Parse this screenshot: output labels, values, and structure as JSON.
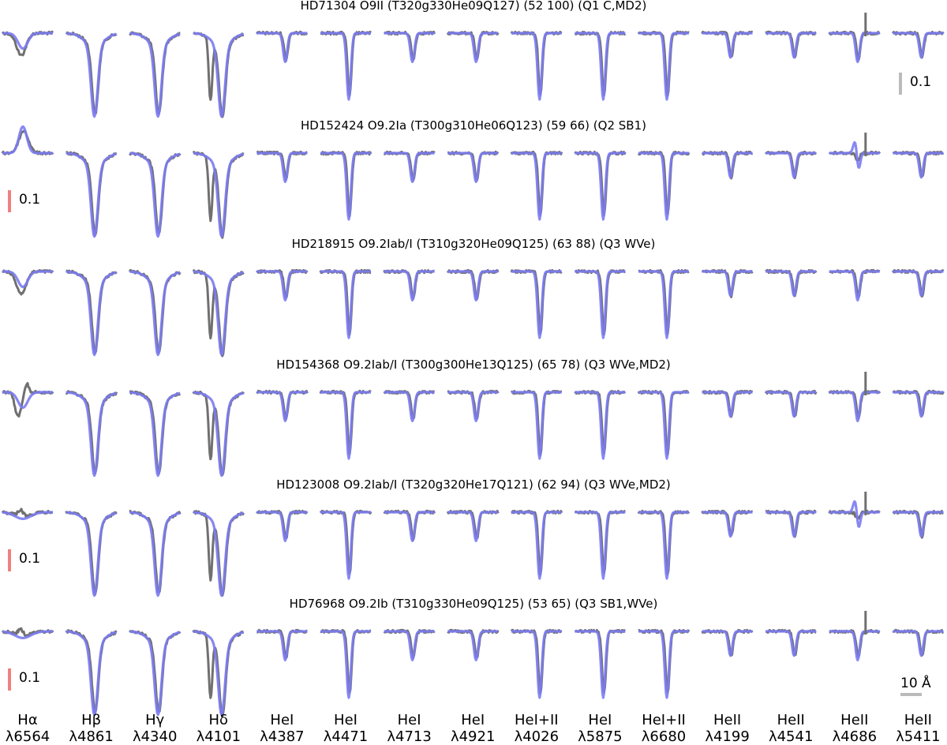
{
  "chart_data": {
    "type": "line",
    "description": "",
    "columns": [
      {
        "name": "Hα",
        "wavelength": "λ6564",
        "kind": "halpha"
      },
      {
        "name": "Hβ",
        "wavelength": "λ4861",
        "kind": "balmer"
      },
      {
        "name": "Hγ",
        "wavelength": "λ4340",
        "kind": "balmer"
      },
      {
        "name": "Hδ",
        "wavelength": "λ4101",
        "kind": "hdelta"
      },
      {
        "name": "HeI",
        "wavelength": "λ4387",
        "kind": "hei"
      },
      {
        "name": "HeI",
        "wavelength": "λ4471",
        "kind": "hei_strong"
      },
      {
        "name": "HeI",
        "wavelength": "λ4713",
        "kind": "hei"
      },
      {
        "name": "HeI",
        "wavelength": "λ4921",
        "kind": "hei"
      },
      {
        "name": "HeI+II",
        "wavelength": "λ4026",
        "kind": "hei_strong"
      },
      {
        "name": "HeI",
        "wavelength": "λ5875",
        "kind": "hei_strong"
      },
      {
        "name": "HeI+II",
        "wavelength": "λ6680",
        "kind": "hei_strong"
      },
      {
        "name": "HeII",
        "wavelength": "λ4199",
        "kind": "heii"
      },
      {
        "name": "HeII",
        "wavelength": "λ4541",
        "kind": "heii"
      },
      {
        "name": "HeII",
        "wavelength": "λ4686",
        "kind": "he4686"
      },
      {
        "name": "HeII",
        "wavelength": "λ5411",
        "kind": "heii"
      }
    ],
    "rows": [
      {
        "title": "HD71304 O9II (T320g330He09Q127) (52 100) (Q1 C,MD2)",
        "halpha": "abs_shallow",
        "he4686": "abs",
        "spike": true
      },
      {
        "title": "HD152424 O9.2Ia (T300g310He06Q123) (59 66) (Q2 SB1)",
        "halpha": "emission",
        "he4686": "pcygni",
        "spike": true
      },
      {
        "title": "HD218915 O9.2Iab/I (T310g320He09Q125) (63 88) (Q3 WVe)",
        "halpha": "abs_shallow",
        "he4686": "abs",
        "spike": false
      },
      {
        "title": "HD154368 O9.2Iab/I (T300g300He13Q125) (65 78) (Q3 WVe,MD2)",
        "halpha": "abs_mixed",
        "he4686": "abs",
        "spike": true
      },
      {
        "title": "HD123008 O9.2Iab/I (T320g320He17Q121) (62 94) (Q3 WVe,MD2)",
        "halpha": "weak",
        "he4686": "pcygni",
        "spike": true
      },
      {
        "title": "HD76968 O9.2Ib (T310g330He09Q125) (53 65) (Q3 SB1,WVe)",
        "halpha": "weak",
        "he4686": "abs",
        "spike": true
      }
    ],
    "scale_bars": [
      {
        "label": "0.1",
        "color": "#bbbbbb",
        "row": 0,
        "column": 14
      },
      {
        "label": "0.1",
        "color": "#f08080",
        "row": 1,
        "column": 0
      },
      {
        "label": "0.1",
        "color": "#f08080",
        "row": 4,
        "column": 0
      },
      {
        "label": "0.1",
        "color": "#f08080",
        "row": 5,
        "column": 0
      }
    ],
    "wavelength_scale": {
      "label": "10 Å",
      "color": "#bbbbbb"
    },
    "colors": {
      "observed": "#707070",
      "model": "#7b7bf2",
      "model_core": "#3b3bc4"
    }
  }
}
